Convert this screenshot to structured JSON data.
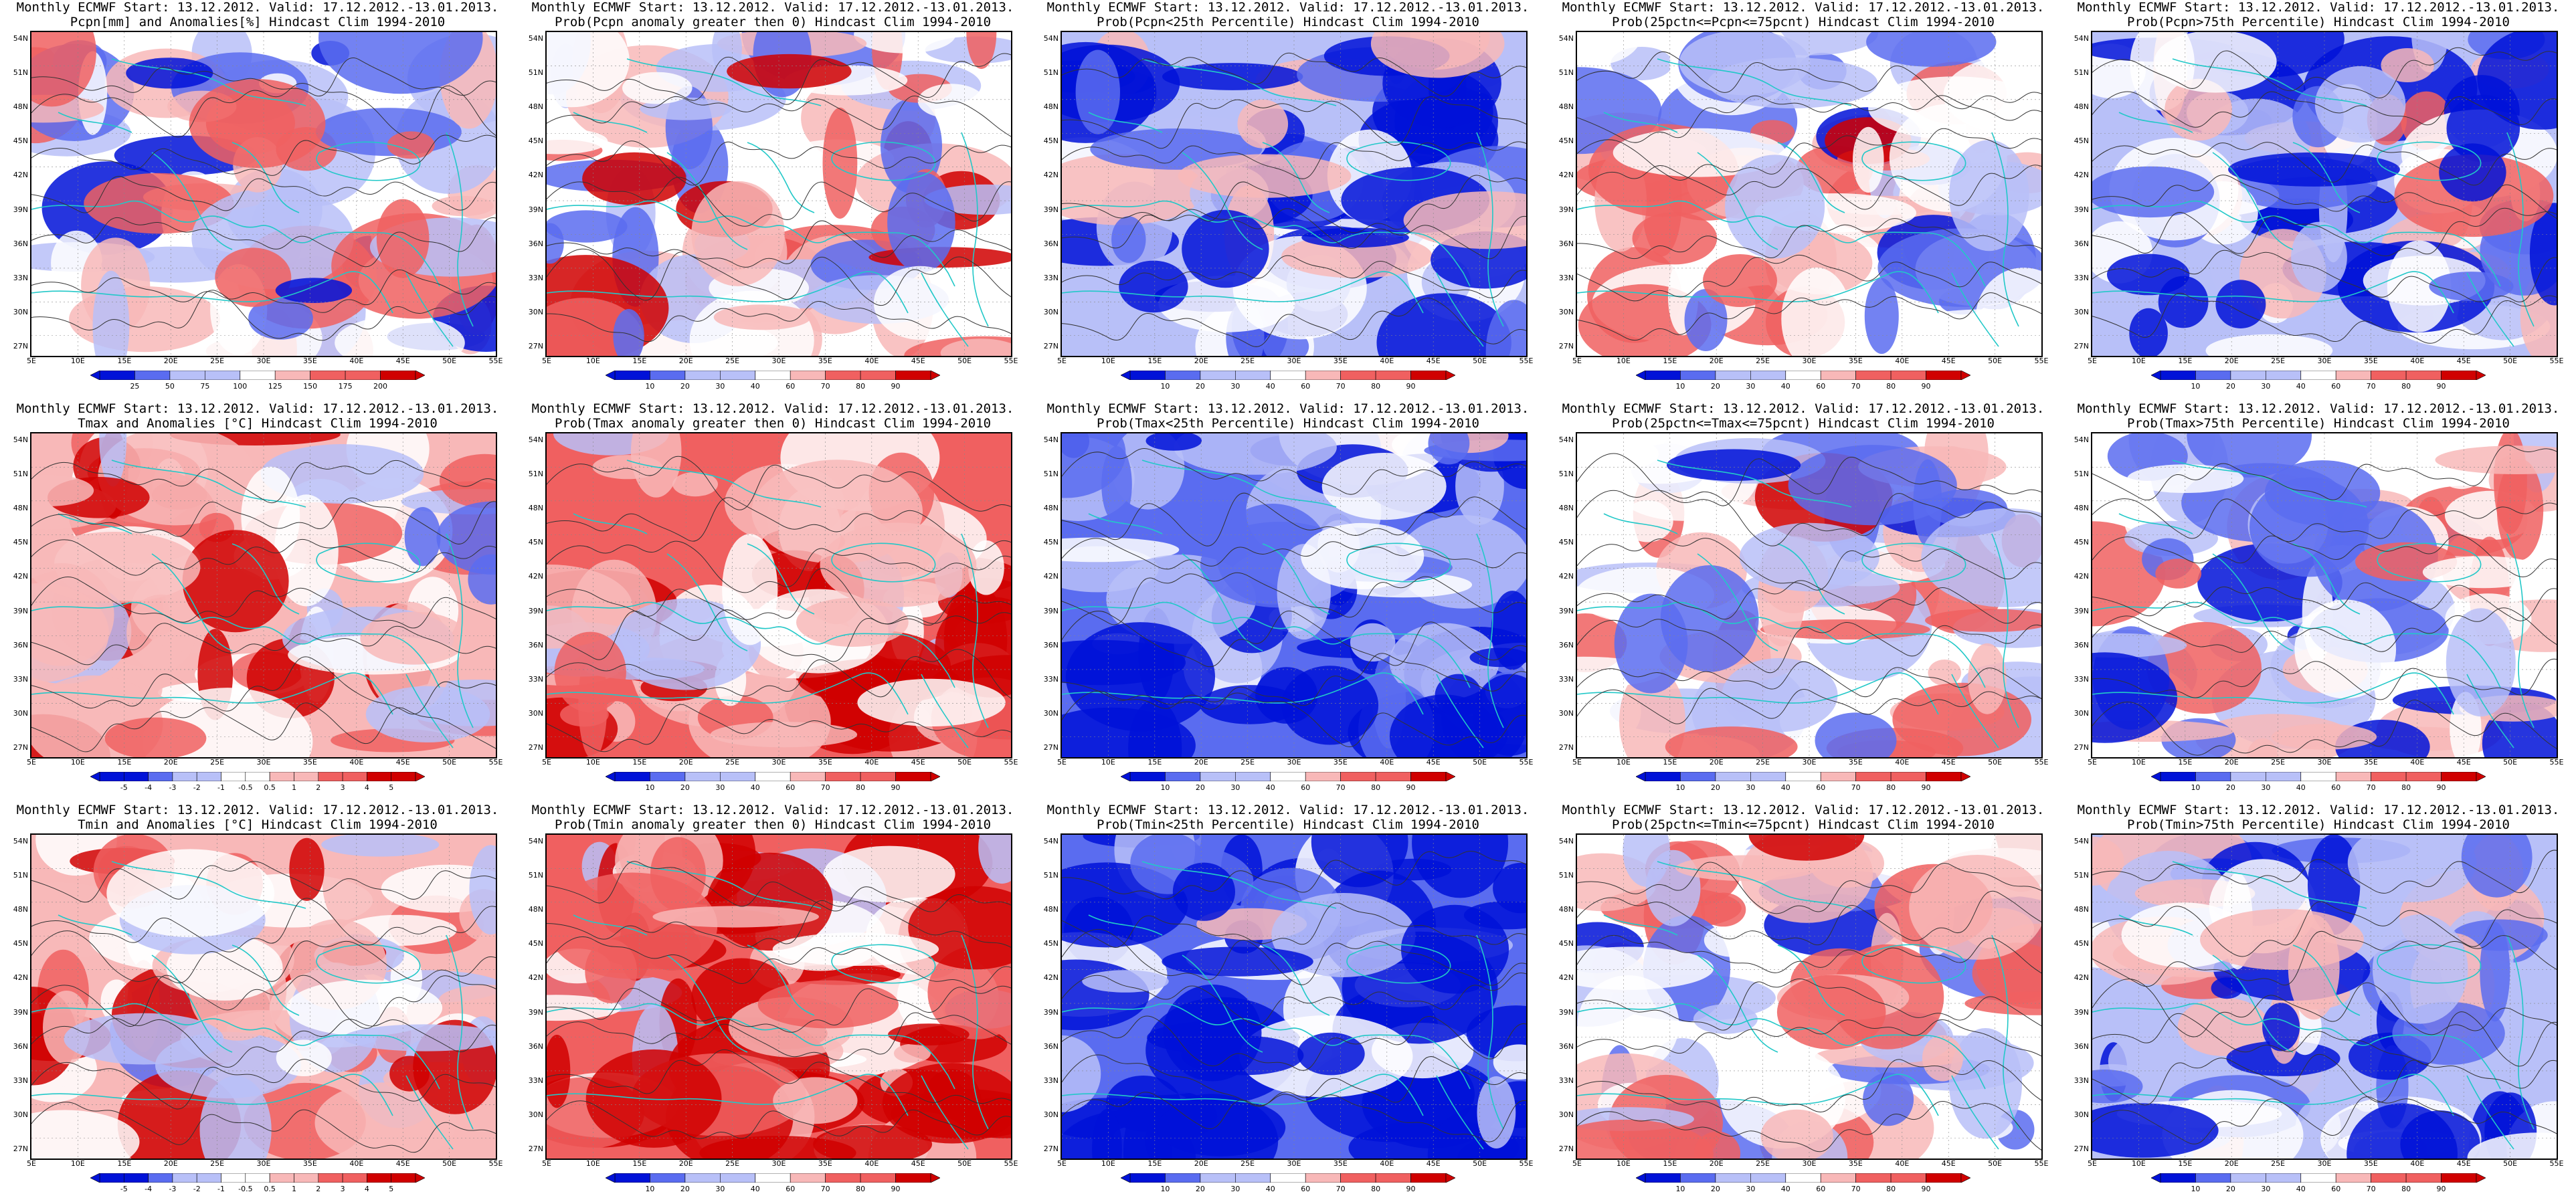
{
  "common": {
    "x_ticks": [
      "5E",
      "10E",
      "15E",
      "20E",
      "25E",
      "30E",
      "35E",
      "40E",
      "45E",
      "50E",
      "55E"
    ],
    "y_ticks": [
      "54N",
      "51N",
      "48N",
      "45N",
      "42N",
      "39N",
      "36N",
      "33N",
      "30N",
      "27N"
    ]
  },
  "colors": {
    "blue_deep": "#0012d8",
    "blue_mid": "#5a6cf0",
    "blue_light": "#b8c0f8",
    "white": "#ffffff",
    "red_light": "#f8b8b8",
    "red_mid": "#f06060",
    "red_deep": "#d00000",
    "coast": "#22c8c8",
    "contour": "#333333"
  },
  "panels": [
    {
      "title1": "Monthly ECMWF Start: 13.12.2012. Valid: 17.12.2012.-13.01.2013.",
      "title2": "Pcpn[mm] and Anomalies[%] Hindcast Clim 1994-2010",
      "palette": "bluewhitered",
      "bias": -0.1,
      "cbar_labels": [
        "25",
        "50",
        "75",
        "100",
        "125",
        "150",
        "175",
        "200"
      ]
    },
    {
      "title1": "Monthly ECMWF Start: 13.12.2012. Valid: 17.12.2012.-13.01.2013.",
      "title2": "Prob(Pcpn anomaly greater then 0) Hindcast Clim 1994-2010",
      "palette": "bluewhitered",
      "bias": 0.1,
      "cbar_labels": [
        "10",
        "20",
        "30",
        "40",
        "60",
        "70",
        "80",
        "90"
      ]
    },
    {
      "title1": "Monthly ECMWF Start: 13.12.2012. Valid: 17.12.2012.-13.01.2013.",
      "title2": "Prob(Pcpn<25th Percentile) Hindcast Clim 1994-2010",
      "palette": "bluewhitered",
      "bias": -0.45,
      "cbar_labels": [
        "10",
        "20",
        "30",
        "40",
        "60",
        "70",
        "80",
        "90"
      ]
    },
    {
      "title1": "Monthly ECMWF Start: 13.12.2012. Valid: 17.12.2012.-13.01.2013.",
      "title2": "Prob(25pctn<=Pcpn<=75pcnt) Hindcast Clim 1994-2010",
      "palette": "bluewhitered",
      "bias": 0.0,
      "cbar_labels": [
        "10",
        "20",
        "30",
        "40",
        "60",
        "70",
        "80",
        "90"
      ]
    },
    {
      "title1": "Monthly ECMWF Start: 13.12.2012. Valid: 17.12.2012.-13.01.2013.",
      "title2": "Prob(Pcpn>75th Percentile) Hindcast Clim 1994-2010",
      "palette": "bluewhitered",
      "bias": -0.25,
      "cbar_labels": [
        "10",
        "20",
        "30",
        "40",
        "60",
        "70",
        "80",
        "90"
      ]
    },
    {
      "title1": "Monthly ECMWF Start: 13.12.2012. Valid: 17.12.2012.-13.01.2013.",
      "title2": "Tmax and Anomalies [°C] Hindcast Clim 1994-2010",
      "palette": "bluewhitered",
      "bias": 0.2,
      "cbar_labels": [
        "-5",
        "-4",
        "-3",
        "-2",
        "-1",
        "-0.5",
        "0.5",
        "1",
        "2",
        "3",
        "4",
        "5"
      ]
    },
    {
      "title1": "Monthly ECMWF Start: 13.12.2012. Valid: 17.12.2012.-13.01.2013.",
      "title2": "Prob(Tmax anomaly greater then 0) Hindcast Clim 1994-2010",
      "palette": "bluewhitered",
      "bias": 0.55,
      "cbar_labels": [
        "10",
        "20",
        "30",
        "40",
        "60",
        "70",
        "80",
        "90"
      ]
    },
    {
      "title1": "Monthly ECMWF Start: 13.12.2012. Valid: 17.12.2012.-13.01.2013.",
      "title2": "Prob(Tmax<25th Percentile) Hindcast Clim 1994-2010",
      "palette": "bluewhitered",
      "bias": -0.7,
      "cbar_labels": [
        "10",
        "20",
        "30",
        "40",
        "60",
        "70",
        "80",
        "90"
      ]
    },
    {
      "title1": "Monthly ECMWF Start: 13.12.2012. Valid: 17.12.2012.-13.01.2013.",
      "title2": "Prob(25pctn<=Tmax<=75pcnt) Hindcast Clim 1994-2010",
      "palette": "bluewhitered",
      "bias": 0.0,
      "cbar_labels": [
        "10",
        "20",
        "30",
        "40",
        "60",
        "70",
        "80",
        "90"
      ]
    },
    {
      "title1": "Monthly ECMWF Start: 13.12.2012. Valid: 17.12.2012.-13.01.2013.",
      "title2": "Prob(Tmax>75th Percentile) Hindcast Clim 1994-2010",
      "palette": "bluewhitered",
      "bias": -0.15,
      "cbar_labels": [
        "10",
        "20",
        "30",
        "40",
        "60",
        "70",
        "80",
        "90"
      ]
    },
    {
      "title1": "Monthly ECMWF Start: 13.12.2012. Valid: 17.12.2012.-13.01.2013.",
      "title2": "Tmin and Anomalies [°C] Hindcast Clim 1994-2010",
      "palette": "bluewhitered",
      "bias": 0.25,
      "cbar_labels": [
        "-5",
        "-4",
        "-3",
        "-2",
        "-1",
        "-0.5",
        "0.5",
        "1",
        "2",
        "3",
        "4",
        "5"
      ]
    },
    {
      "title1": "Monthly ECMWF Start: 13.12.2012. Valid: 17.12.2012.-13.01.2013.",
      "title2": "Prob(Tmin anomaly greater then 0) Hindcast Clim 1994-2010",
      "palette": "bluewhitered",
      "bias": 0.5,
      "cbar_labels": [
        "10",
        "20",
        "30",
        "40",
        "60",
        "70",
        "80",
        "90"
      ]
    },
    {
      "title1": "Monthly ECMWF Start: 13.12.2012. Valid: 17.12.2012.-13.01.2013.",
      "title2": "Prob(Tmin<25th Percentile) Hindcast Clim 1994-2010",
      "palette": "bluewhitered",
      "bias": -0.7,
      "cbar_labels": [
        "10",
        "20",
        "30",
        "40",
        "60",
        "70",
        "80",
        "90"
      ]
    },
    {
      "title1": "Monthly ECMWF Start: 13.12.2012. Valid: 17.12.2012.-13.01.2013.",
      "title2": "Prob(25pctn<=Tmin<=75pcnt) Hindcast Clim 1994-2010",
      "palette": "bluewhitered",
      "bias": 0.0,
      "cbar_labels": [
        "10",
        "20",
        "30",
        "40",
        "60",
        "70",
        "80",
        "90"
      ]
    },
    {
      "title1": "Monthly ECMWF Start: 13.12.2012. Valid: 17.12.2012.-13.01.2013.",
      "title2": "Prob(Tmin>75th Percentile) Hindcast Clim 1994-2010",
      "palette": "bluewhitered",
      "bias": -0.3,
      "cbar_labels": [
        "10",
        "20",
        "30",
        "40",
        "60",
        "70",
        "80",
        "90"
      ]
    }
  ]
}
